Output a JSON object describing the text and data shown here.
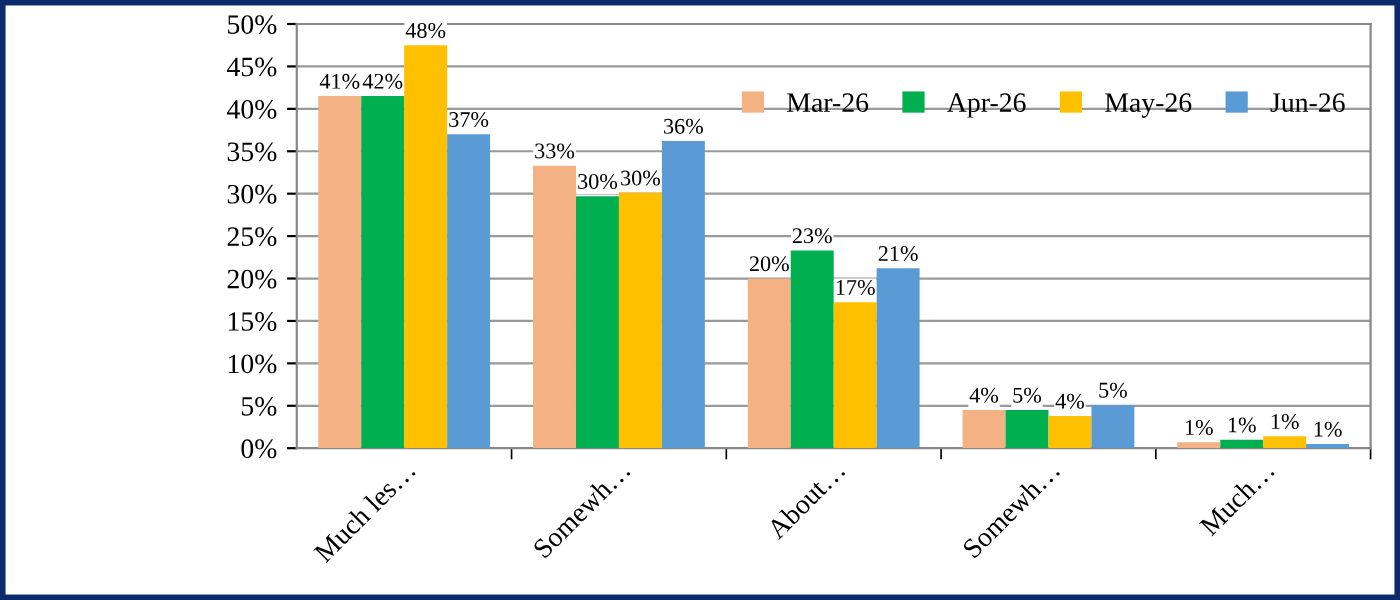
{
  "chart_data": {
    "type": "bar",
    "categories": [
      "Much les…",
      "Somewh…",
      "About…",
      "Somewh…",
      "Much…"
    ],
    "series": [
      {
        "name": "Mar-26",
        "color": "#f4b183",
        "values": [
          41.5,
          33.3,
          20.0,
          4.5,
          0.7
        ],
        "value_labels": [
          "41%",
          "33%",
          "20%",
          "4%",
          "1%"
        ]
      },
      {
        "name": "Apr-26",
        "color": "#00b050",
        "values": [
          41.5,
          29.7,
          23.3,
          4.5,
          1.0
        ],
        "value_labels": [
          "42%",
          "30%",
          "23%",
          "5%",
          "1%"
        ]
      },
      {
        "name": "May-26",
        "color": "#ffc000",
        "values": [
          47.5,
          30.1,
          17.2,
          3.8,
          1.4
        ],
        "value_labels": [
          "48%",
          "30%",
          "17%",
          "4%",
          "1%"
        ]
      },
      {
        "name": "Jun-26",
        "color": "#5b9bd5",
        "values": [
          37.0,
          36.2,
          21.2,
          5.1,
          0.5
        ],
        "value_labels": [
          "37%",
          "36%",
          "21%",
          "5%",
          "1%"
        ]
      }
    ],
    "ylim": [
      0,
      50
    ],
    "yticks": [
      {
        "value": 0,
        "label": "0%"
      },
      {
        "value": 5,
        "label": "5%"
      },
      {
        "value": 10,
        "label": "10%"
      },
      {
        "value": 15,
        "label": "15%"
      },
      {
        "value": 20,
        "label": "20%"
      },
      {
        "value": 25,
        "label": "25%"
      },
      {
        "value": 30,
        "label": "30%"
      },
      {
        "value": 35,
        "label": "35%"
      },
      {
        "value": 40,
        "label": "40%"
      },
      {
        "value": 45,
        "label": "45%"
      },
      {
        "value": 50,
        "label": "50%"
      }
    ],
    "grid": "y",
    "legend": "top right"
  }
}
